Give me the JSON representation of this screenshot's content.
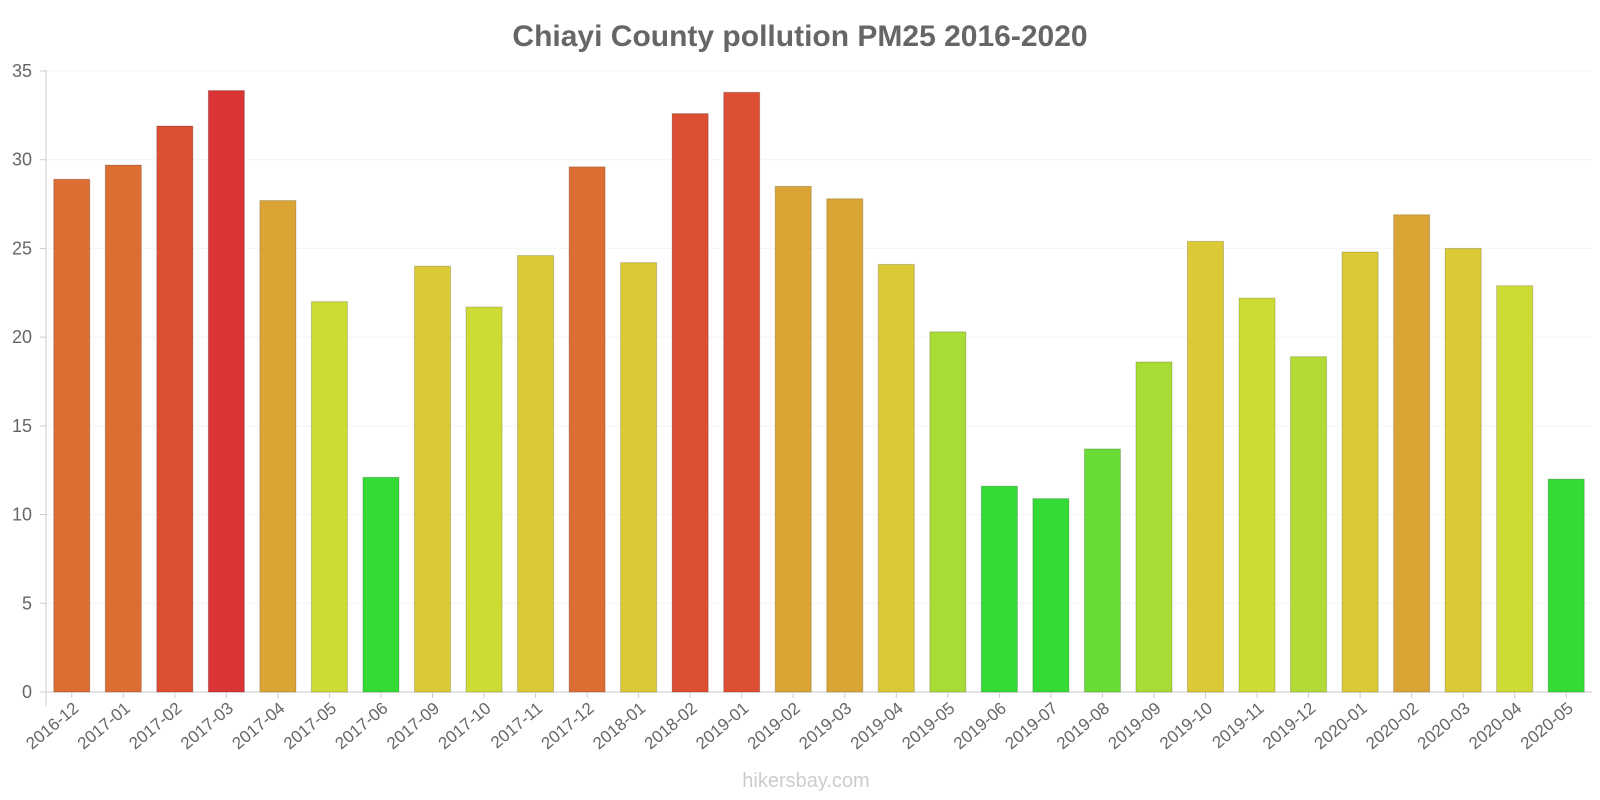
{
  "chart_data": {
    "type": "bar",
    "title": "Chiayi County pollution PM25 2016-2020",
    "xlabel": "",
    "ylabel": "",
    "ylim": [
      0,
      35
    ],
    "yticks": [
      0,
      5,
      10,
      15,
      20,
      25,
      30,
      35
    ],
    "categories": [
      "2016-12",
      "2017-01",
      "2017-02",
      "2017-03",
      "2017-04",
      "2017-05",
      "2017-06",
      "2017-09",
      "2017-10",
      "2017-11",
      "2017-12",
      "2018-01",
      "2018-02",
      "2019-01",
      "2019-02",
      "2019-03",
      "2019-04",
      "2019-05",
      "2019-06",
      "2019-07",
      "2019-08",
      "2019-09",
      "2019-10",
      "2019-11",
      "2019-12",
      "2020-01",
      "2020-02",
      "2020-03",
      "2020-04",
      "2020-05"
    ],
    "values": [
      28.9,
      29.7,
      31.9,
      33.9,
      27.7,
      22,
      12.1,
      24,
      21.7,
      24.6,
      29.6,
      24.2,
      32.6,
      33.8,
      28.5,
      27.8,
      24.1,
      20.3,
      11.6,
      10.9,
      13.7,
      18.6,
      25.4,
      22.2,
      18.9,
      24.8,
      26.9,
      25,
      22.9,
      12
    ],
    "colors": [
      "#dd6e33",
      "#dd6e33",
      "#dc4f33",
      "#d93535",
      "#dba535",
      "#cfdb35",
      "#35db35",
      "#dbc935",
      "#cfdb35",
      "#dbc935",
      "#dd6e33",
      "#dbc935",
      "#dc4f33",
      "#dc4f33",
      "#dba535",
      "#dba535",
      "#dbc935",
      "#a9db35",
      "#35db35",
      "#35db35",
      "#69db35",
      "#a9db35",
      "#dbc935",
      "#cfdb35",
      "#b3db35",
      "#dbc935",
      "#dba535",
      "#dbc935",
      "#cfdb35",
      "#35db35"
    ],
    "grid": true,
    "legend": "none"
  },
  "watermark": "hikersbay.com"
}
